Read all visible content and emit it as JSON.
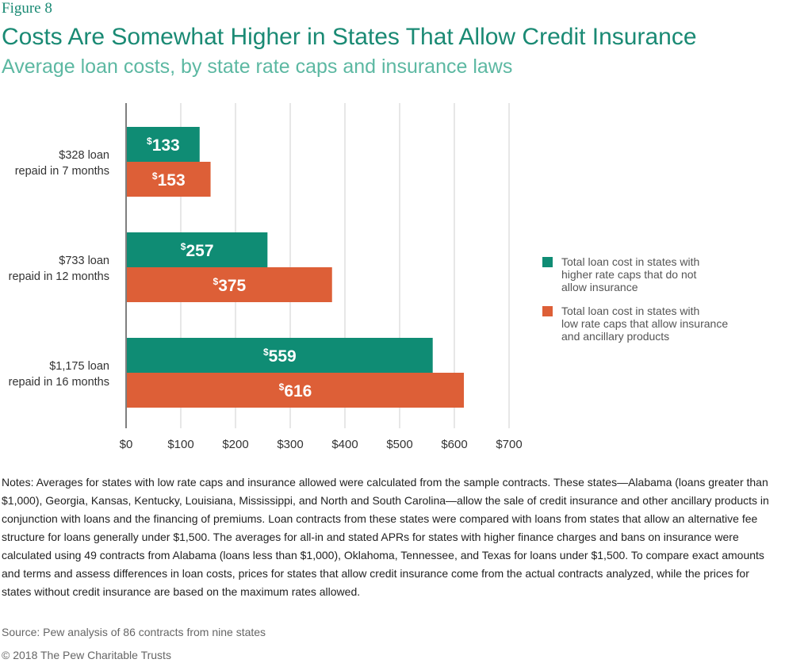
{
  "figure_label": "Figure 8",
  "title": "Costs Are Somewhat Higher in States That Allow Credit Insurance",
  "subtitle": "Average loan costs, by state rate caps and insurance laws",
  "colors": {
    "teal": "#0f8c74",
    "orange": "#dd5f37",
    "grid": "#cfcfcf",
    "title": "#1a8a74"
  },
  "chart_data": {
    "type": "bar",
    "orientation": "horizontal",
    "categories": [
      [
        "$328 loan",
        "repaid in 7 months"
      ],
      [
        "$733 loan",
        "repaid in 12 months"
      ],
      [
        "$1,175 loan",
        "repaid in 16 months"
      ]
    ],
    "series": [
      {
        "name": "Total loan cost in states with higher rate caps  that do not allow insurance",
        "values": [
          133,
          257,
          559
        ],
        "labels": [
          "133",
          "257",
          "559"
        ]
      },
      {
        "name": "Total loan cost in states with low rate caps that allow insurance and ancillary products",
        "values": [
          153,
          375,
          616
        ],
        "labels": [
          "153",
          "375",
          "616"
        ]
      }
    ],
    "label_prefix": "$",
    "xlim": [
      0,
      700
    ],
    "xticks": [
      "$0",
      "$100",
      "$200",
      "$300",
      "$400",
      "$500",
      "$600",
      "$700"
    ],
    "grid": true,
    "legend_position": "right"
  },
  "legend": [
    {
      "lines": [
        "Total loan cost in states with",
        "higher rate caps  that do not",
        "allow insurance"
      ]
    },
    {
      "lines": [
        "Total loan cost in states with",
        "low rate caps that allow insurance",
        "and ancillary products"
      ]
    }
  ],
  "notes": "Notes: Averages for states with low rate caps and insurance allowed were calculated from the sample contracts. These states—Alabama (loans greater than $1,000), Georgia, Kansas, Kentucky, Louisiana, Mississippi, and North and South Carolina—allow the sale of credit insurance and other ancillary products in conjunction with loans and the financing of premiums. Loan contracts from these states were compared with loans from states that allow an alternative fee structure for loans generally under $1,500. The averages for all-in and stated APRs for states with higher finance charges and bans on insurance were calculated using 49 contracts from Alabama (loans less than $1,000), Oklahoma, Tennessee, and Texas for loans under $1,500. To compare exact amounts and terms and assess differences in loan costs, prices for states that allow credit insurance come from the actual contracts analyzed, while the prices for states without credit insurance are based on the maximum rates allowed.",
  "source": "Source: Pew analysis of 86 contracts from nine states",
  "copyright": "© 2018 The Pew Charitable Trusts"
}
